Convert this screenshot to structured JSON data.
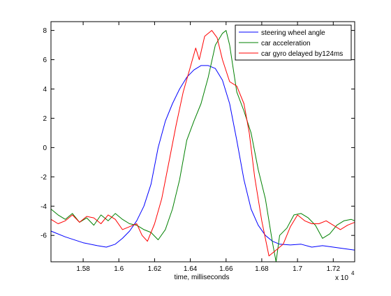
{
  "chart_data": {
    "type": "line",
    "title": "",
    "xlabel": "time, milliseconds",
    "ylabel": "",
    "x_multiplier_label": "x 10",
    "x_multiplier_exponent": "4",
    "xlim": [
      15.62,
      17.32
    ],
    "ylim": [
      -7.8,
      8.6
    ],
    "xticks": [
      15.8,
      16.0,
      16.2,
      16.4,
      16.6,
      16.8,
      17.0,
      17.2
    ],
    "xtick_labels": [
      "1.58",
      "1.6",
      "1.62",
      "1.64",
      "1.66",
      "1.68",
      "1.7",
      "1.72"
    ],
    "yticks": [
      -6,
      -4,
      -2,
      0,
      2,
      4,
      6,
      8
    ],
    "ytick_labels": [
      "-6",
      "-4",
      "-2",
      "0",
      "2",
      "4",
      "6",
      "8"
    ],
    "grid": false,
    "legend_position": "top-right",
    "series": [
      {
        "name": "steering wheel angle",
        "color": "#0000ff",
        "x": [
          15.62,
          15.7,
          15.8,
          15.88,
          15.93,
          15.98,
          16.02,
          16.06,
          16.1,
          16.14,
          16.18,
          16.22,
          16.26,
          16.3,
          16.34,
          16.38,
          16.42,
          16.46,
          16.5,
          16.54,
          16.58,
          16.62,
          16.66,
          16.7,
          16.74,
          16.78,
          16.82,
          16.86,
          16.9,
          16.96,
          17.02,
          17.08,
          17.14,
          17.2,
          17.26,
          17.32
        ],
        "y": [
          -5.7,
          -6.1,
          -6.5,
          -6.7,
          -6.8,
          -6.6,
          -6.2,
          -5.7,
          -5.0,
          -4.0,
          -2.5,
          0.0,
          1.8,
          3.0,
          4.0,
          4.8,
          5.3,
          5.6,
          5.6,
          5.4,
          4.6,
          3.0,
          0.5,
          -2.2,
          -4.2,
          -5.3,
          -6.0,
          -6.4,
          -6.6,
          -6.65,
          -6.6,
          -6.8,
          -6.7,
          -6.8,
          -6.9,
          -7.0
        ]
      },
      {
        "name": "car acceleration",
        "color": "#008000",
        "x": [
          15.62,
          15.66,
          15.7,
          15.74,
          15.78,
          15.82,
          15.86,
          15.9,
          15.94,
          15.98,
          16.02,
          16.06,
          16.1,
          16.14,
          16.18,
          16.22,
          16.26,
          16.3,
          16.34,
          16.38,
          16.42,
          16.46,
          16.5,
          16.54,
          16.58,
          16.6,
          16.62,
          16.66,
          16.7,
          16.74,
          16.78,
          16.82,
          16.86,
          16.88,
          16.9,
          16.94,
          16.98,
          17.02,
          17.06,
          17.1,
          17.14,
          17.18,
          17.22,
          17.26,
          17.3,
          17.32
        ],
        "y": [
          -4.2,
          -4.6,
          -4.9,
          -4.5,
          -5.1,
          -4.8,
          -5.3,
          -4.6,
          -5.0,
          -4.5,
          -4.9,
          -5.2,
          -5.3,
          -5.6,
          -5.8,
          -6.3,
          -5.6,
          -4.2,
          -2.2,
          0.5,
          1.8,
          3.0,
          4.8,
          7.0,
          7.8,
          8.0,
          7.0,
          3.8,
          2.5,
          1.0,
          -1.5,
          -3.5,
          -6.5,
          -7.8,
          -6.0,
          -5.5,
          -4.6,
          -4.5,
          -4.8,
          -5.3,
          -6.2,
          -5.9,
          -5.3,
          -5.0,
          -4.9,
          -5.0
        ]
      },
      {
        "name": "car gyro delayed by124ms",
        "color": "#ff0000",
        "x": [
          15.62,
          15.66,
          15.7,
          15.74,
          15.78,
          15.82,
          15.86,
          15.9,
          15.94,
          15.98,
          16.02,
          16.06,
          16.1,
          16.13,
          16.16,
          16.2,
          16.24,
          16.28,
          16.32,
          16.36,
          16.4,
          16.43,
          16.45,
          16.48,
          16.52,
          16.55,
          16.58,
          16.62,
          16.66,
          16.7,
          16.73,
          16.76,
          16.8,
          16.84,
          16.88,
          16.92,
          16.96,
          17.0,
          17.04,
          17.08,
          17.12,
          17.16,
          17.2,
          17.24,
          17.28,
          17.32
        ],
        "y": [
          -4.9,
          -5.2,
          -5.0,
          -4.6,
          -5.1,
          -4.7,
          -4.8,
          -5.2,
          -4.6,
          -4.9,
          -5.6,
          -5.4,
          -5.2,
          -6.0,
          -6.4,
          -5.2,
          -3.5,
          -1.0,
          1.5,
          3.8,
          5.5,
          6.8,
          6.0,
          7.6,
          8.0,
          7.5,
          6.0,
          4.5,
          4.2,
          3.0,
          1.0,
          -2.0,
          -5.0,
          -7.4,
          -7.0,
          -6.6,
          -5.4,
          -4.6,
          -5.0,
          -5.2,
          -5.2,
          -5.0,
          -5.3,
          -5.6,
          -5.3,
          -5.1
        ]
      }
    ]
  }
}
